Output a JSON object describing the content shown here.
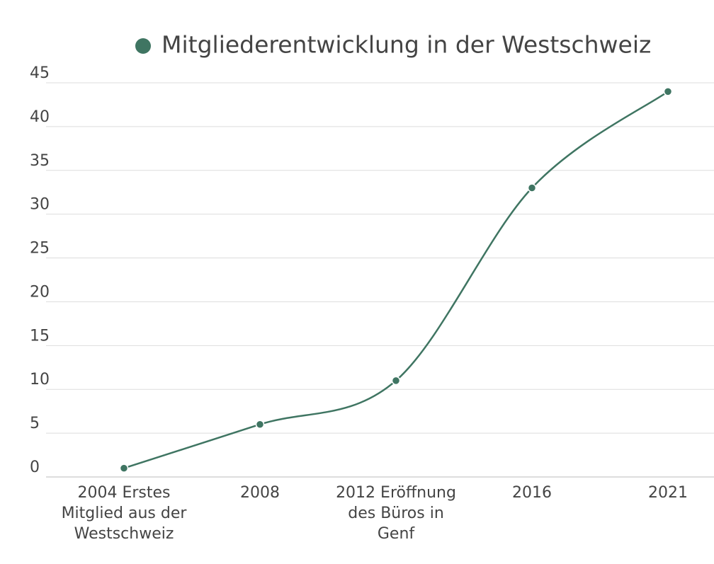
{
  "chart_data": {
    "type": "line",
    "categories": [
      "2004 Erstes Mitglied aus der Westschweiz",
      "2008",
      "2012 Eröffnung des Büros in Genf",
      "2016",
      "2021"
    ],
    "series": [
      {
        "name": "Mitgliederentwicklung in der Westschweiz",
        "color": "#3f7562",
        "values": [
          1,
          6,
          11,
          33,
          44
        ]
      }
    ],
    "ylim": [
      0,
      45
    ],
    "yticks": [
      0,
      5,
      10,
      15,
      20,
      25,
      30,
      35,
      40,
      45
    ],
    "grid": true
  }
}
